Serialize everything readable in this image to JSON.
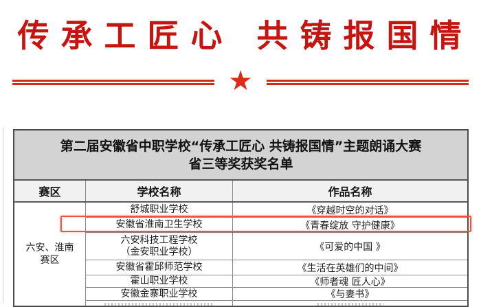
{
  "banner": {
    "headline": "传承工匠心 共铸报国情"
  },
  "divider": {
    "star_icon": "★"
  },
  "table": {
    "title_line1": "第二届安徽省中职学校“传承工匠心 共铸报国情”主题朗诵大赛",
    "title_line2": "省三等奖获奖名单",
    "headers": [
      "赛区",
      "学校名称",
      "作品名称"
    ],
    "zone": {
      "line1": "六安、淮南",
      "line2": "赛区"
    },
    "rows": [
      {
        "school": "舒城职业学校",
        "school2": "",
        "work": "《穿越时空的对话》",
        "highlighted": false
      },
      {
        "school": "安徽省淮南卫生学校",
        "school2": "",
        "work": "《青春绽放 守护健康》",
        "highlighted": true
      },
      {
        "school": "六安科技工程学校",
        "school2": "（金安职业学校）",
        "work": "《可爱的中国 》",
        "highlighted": false
      },
      {
        "school": "安徽省霍邱师范学校",
        "school2": "",
        "work": "《生活在英雄们的中间》",
        "highlighted": false
      },
      {
        "school": "霍山职业学校",
        "school2": "",
        "work": "《师者魂 匠人心》",
        "highlighted": false
      },
      {
        "school": "安徽金寨职业学校",
        "school2": "",
        "work": "《与妻书》",
        "highlighted": false
      }
    ],
    "clipped_row_visible": true
  },
  "colors": {
    "headline_red": "#c51511",
    "divider_red": "#d32a1a",
    "star_red": "#da2c17",
    "highlight_red": "#ef5340",
    "title_block_bg": "#d3d3d3",
    "header_row_bg": "#f1f1f1",
    "table_border": "#4c4c4c"
  }
}
